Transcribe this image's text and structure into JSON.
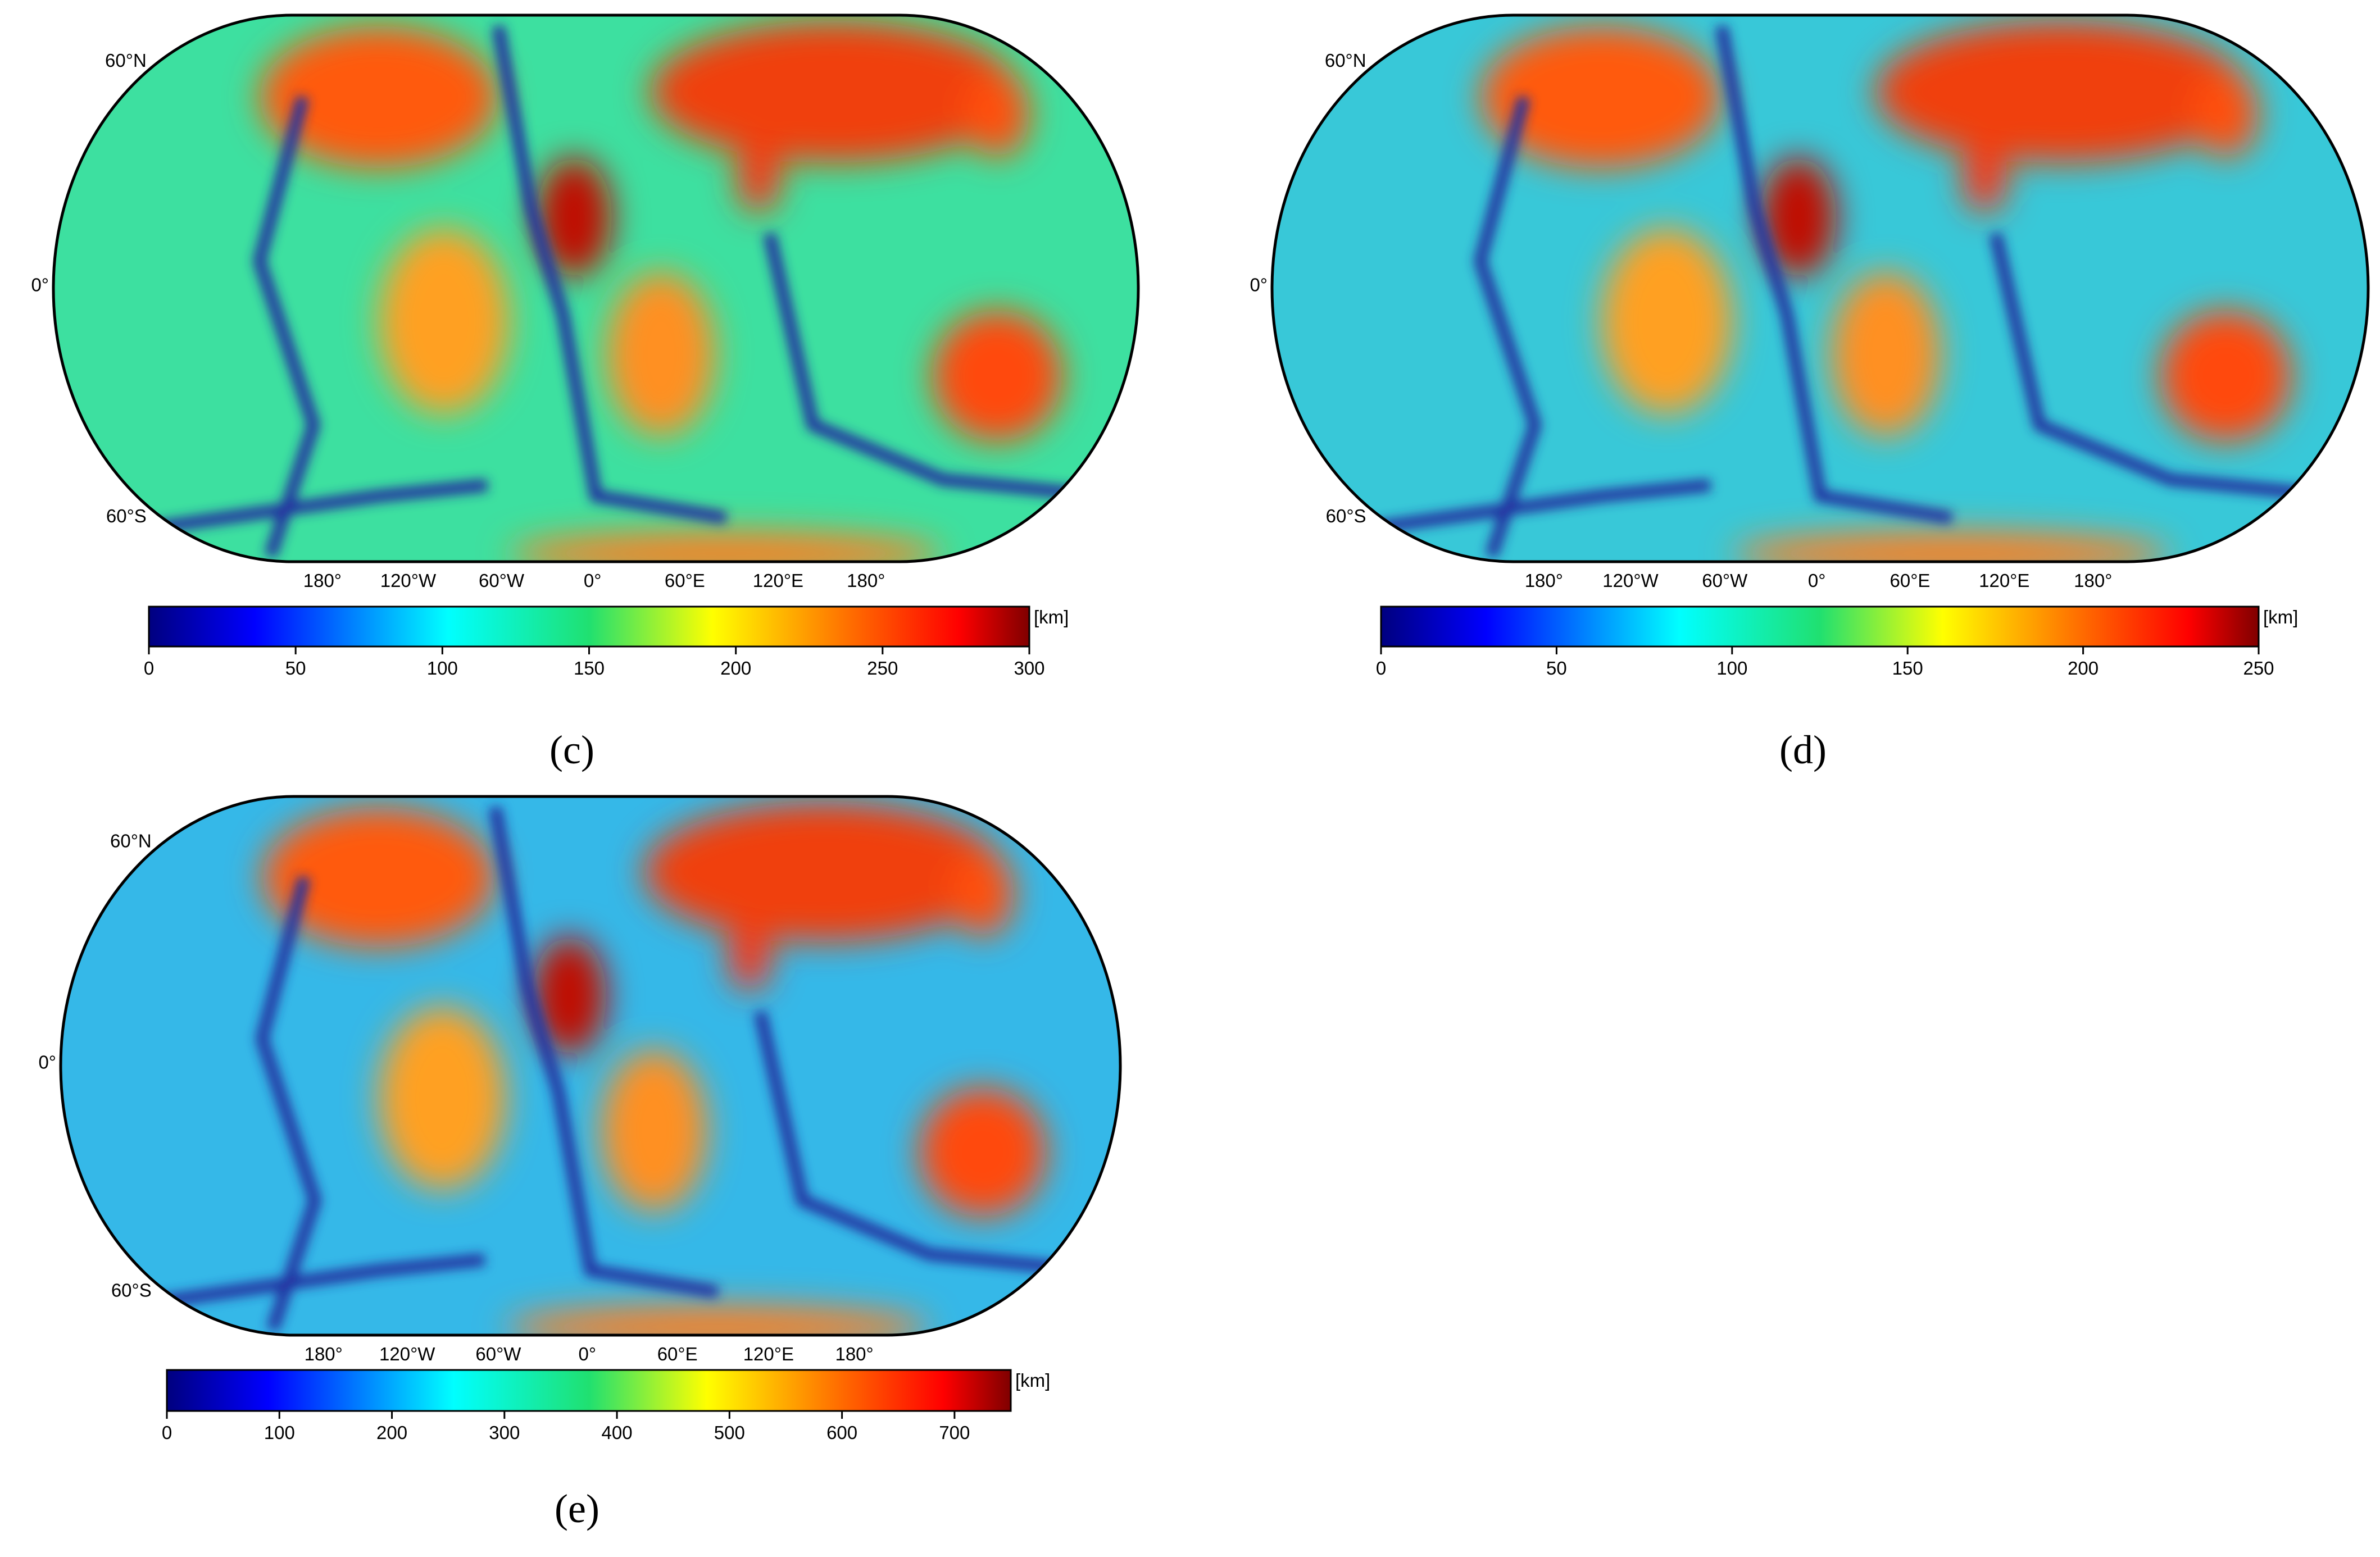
{
  "panels": [
    {
      "label": "(c)",
      "lat_labels": [
        "60°N",
        "0°",
        "60°S"
      ],
      "lon_labels": [
        "180°",
        "120°W",
        "60°W",
        "0°",
        "60°E",
        "120°E",
        "180°"
      ],
      "colorbar": {
        "unit": "[km]",
        "lim": [
          0,
          300
        ],
        "ticks": [
          0,
          50,
          100,
          150,
          200,
          250,
          300
        ]
      }
    },
    {
      "label": "(d)",
      "lat_labels": [
        "60°N",
        "0°",
        "60°S"
      ],
      "lon_labels": [
        "180°",
        "120°W",
        "60°W",
        "0°",
        "60°E",
        "120°E",
        "180°"
      ],
      "colorbar": {
        "unit": "[km]",
        "lim": [
          0,
          250
        ],
        "ticks": [
          0,
          50,
          100,
          150,
          200,
          250
        ]
      }
    },
    {
      "label": "(e)",
      "lat_labels": [
        "60°N",
        "0°",
        "60°S"
      ],
      "lon_labels": [
        "180°",
        "120°W",
        "60°W",
        "0°",
        "60°E",
        "120°E",
        "180°"
      ],
      "colorbar": {
        "unit": "[km]",
        "lim": [
          0,
          750
        ],
        "ticks": [
          0,
          100,
          200,
          300,
          400,
          500,
          600,
          700
        ]
      }
    }
  ]
}
